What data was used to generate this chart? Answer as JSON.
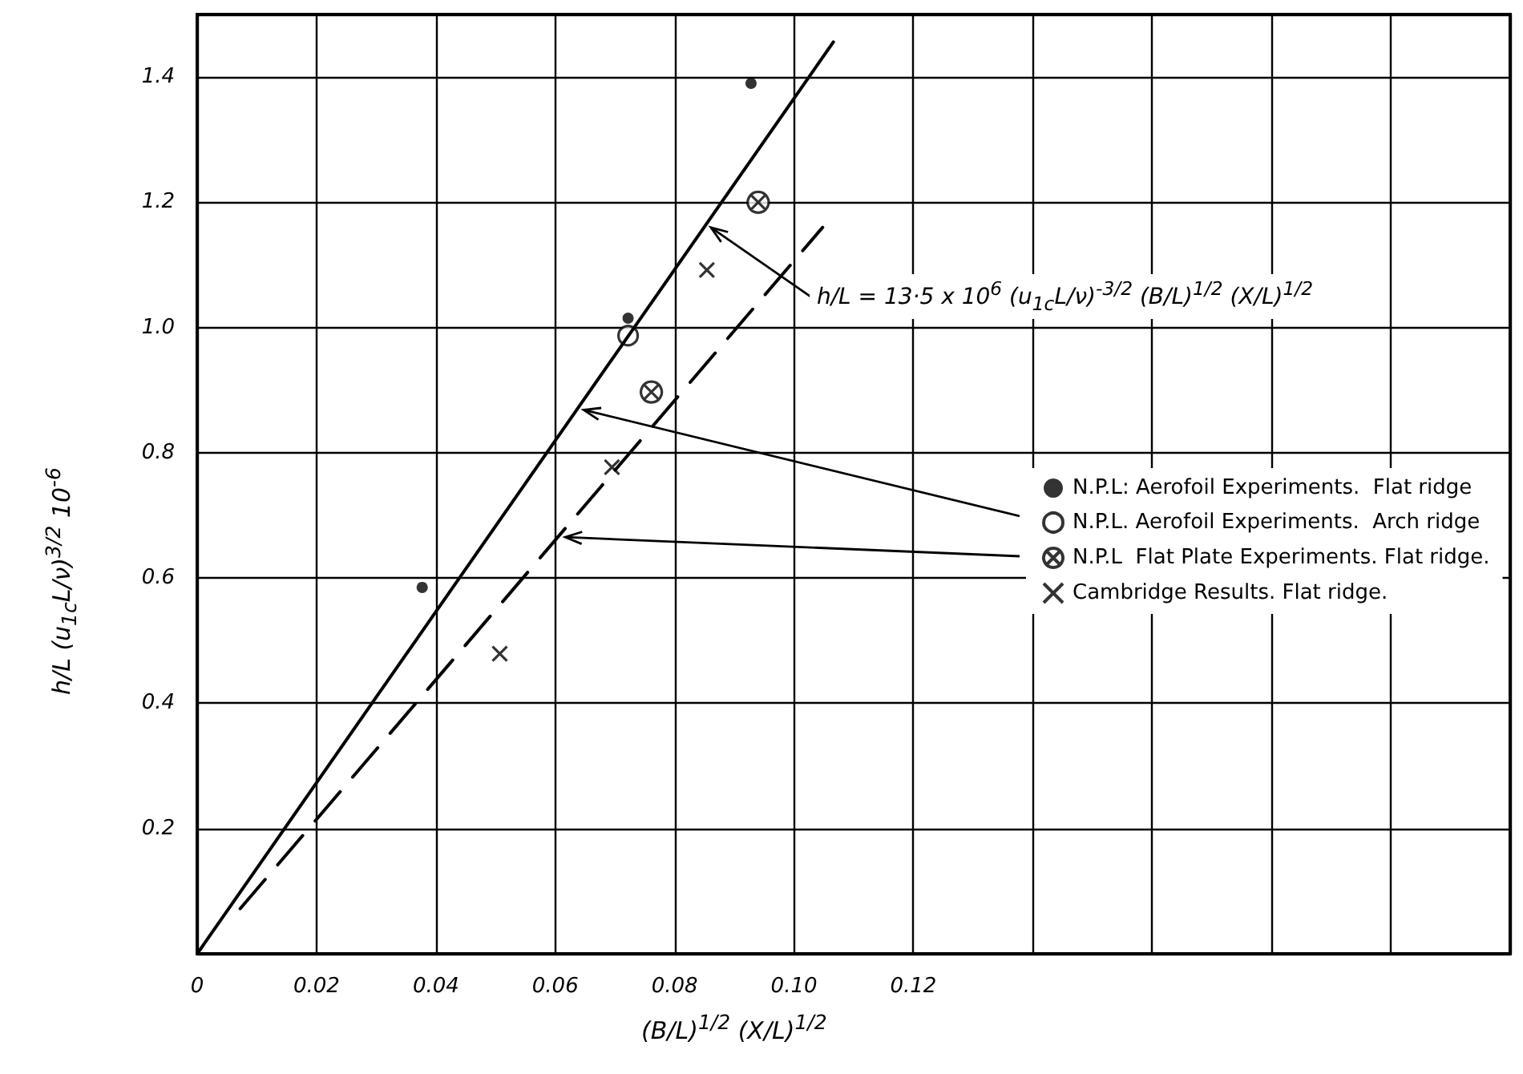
{
  "chart_data": {
    "type": "scatter",
    "xlabel": "(B/L)$^{1/2}$ (X/L)$^{1/2}$",
    "ylabel": "h/L (u$_{1c}$L/ν)$^{3/2}$ 10$^{-6}$",
    "annotations": [
      "h/L = 13·5 x 10$^{6}$ (u$_{1c}$L/ν)$^{-3/2}$ (B/L)$^{1/2}$ (X/L)$^{1/2}$"
    ],
    "series": [
      {
        "name": "N.P.L: Aerofoil Experiments.  Flat ridge",
        "color": "#000000",
        "marker": "circle",
        "x": [
          0.0377,
          0.0722,
          0.0928
        ],
        "values": [
          0.585,
          1.015,
          1.39
        ]
      },
      {
        "name": "N.P.L. Aerofoil Experiments.  Arch ridge",
        "color": "#000000",
        "marker": "circle",
        "x": [
          0.0722
        ],
        "values": [
          0.987
        ]
      },
      {
        "name": "N.P.L  Flat Plate Experiments. Flat ridge.",
        "color": "#000000",
        "marker": "cross",
        "x": [
          0.0761,
          0.094
        ],
        "values": [
          0.897,
          1.2
        ]
      },
      {
        "name": "Cambridge Results. Flat ridge.",
        "color": "#000000",
        "marker": "cross",
        "x": [
          0.0507,
          0.0695,
          0.0854
        ],
        "values": [
          0.479,
          0.777,
          1.092
        ]
      },
      {
        "type": "line",
        "color": "#000000",
        "line_style": "solid",
        "marker": "none",
        "x": [
          0,
          0.1066
        ],
        "values": [
          0,
          1.456
        ]
      },
      {
        "type": "line",
        "color": "#000000",
        "line_style": "dashed",
        "marker": "none",
        "x": [
          0.0072,
          0.1048
        ],
        "values": [
          0.072,
          1.16
        ]
      }
    ],
    "xlim": [
      0,
      0.22
    ],
    "xticks": [
      0,
      0.02,
      0.04,
      0.06,
      0.08,
      {
        "value": 0.1,
        "label": "0.10"
      },
      0.12,
      {
        "value": 0.14,
        "label": null
      },
      {
        "value": 0.16,
        "label": null
      },
      {
        "value": 0.18,
        "label": null
      },
      {
        "value": 0.2,
        "label": null
      },
      {
        "value": 0.22,
        "label": null
      }
    ],
    "ylim": [
      0,
      1.5
    ],
    "yticks": [
      {
        "value": 0,
        "label": null
      },
      0.2,
      0.4,
      0.6,
      0.8,
      {
        "value": 1.0,
        "label": "1.0"
      },
      1.2,
      1.4,
      {
        "value": 1.5,
        "label": null
      }
    ],
    "grid": true,
    "legend": "right"
  }
}
